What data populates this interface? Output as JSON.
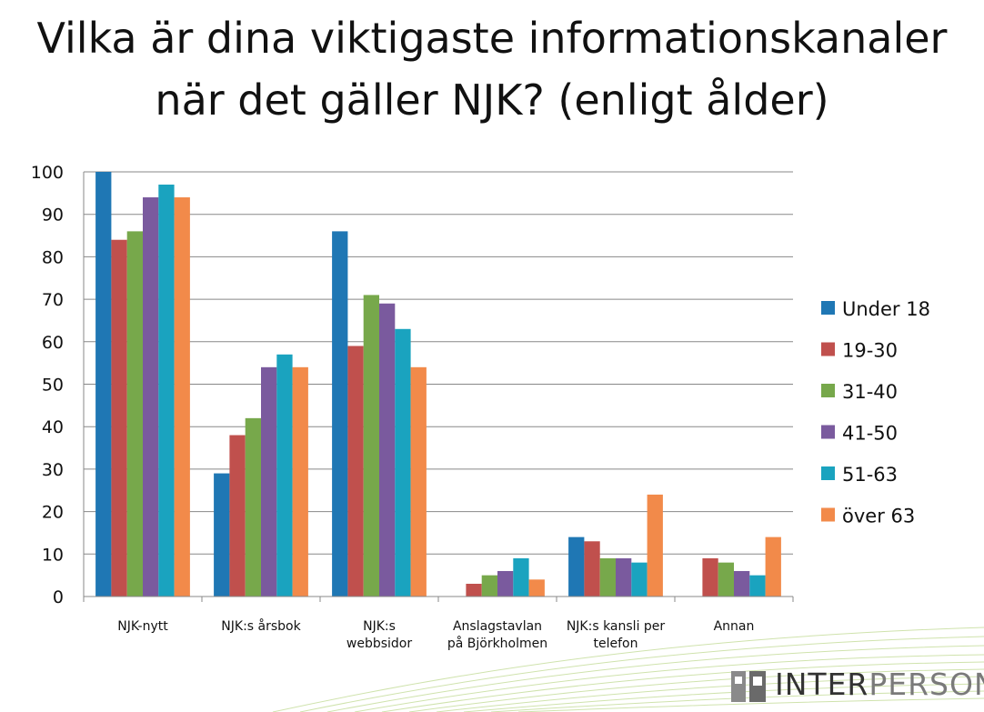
{
  "title_lines": [
    "Vilka är dina viktigaste informationskanaler",
    "när det gäller NJK? (enligt ålder)"
  ],
  "brand": {
    "part1": "INTER",
    "part2": "PERSONA"
  },
  "colors": {
    "Under 18": "#1f77b4",
    "19-30": "#c0504d",
    "31-40": "#77a84b",
    "41-50": "#7a5a9e",
    "51-63": "#1aa3bf",
    "över 63": "#f28a4a",
    "grid": "#888888"
  },
  "chart_data": {
    "type": "bar",
    "title": "Vilka är dina viktigaste informationskanaler när det gäller NJK? (enligt ålder)",
    "categories": [
      [
        "NJK-nytt"
      ],
      [
        "NJK:s årsbok"
      ],
      [
        "NJK:s",
        "webbsidor"
      ],
      [
        "Anslagstavlan",
        "på Björkholmen"
      ],
      [
        "NJK:s kansli per",
        "telefon"
      ],
      [
        "Annan"
      ]
    ],
    "series": [
      {
        "name": "Under 18",
        "values": [
          100,
          29,
          86,
          0,
          14,
          0
        ]
      },
      {
        "name": "19-30",
        "values": [
          84,
          38,
          59,
          3,
          13,
          9
        ]
      },
      {
        "name": "31-40",
        "values": [
          86,
          42,
          71,
          5,
          9,
          8
        ]
      },
      {
        "name": "41-50",
        "values": [
          94,
          54,
          69,
          6,
          9,
          6
        ]
      },
      {
        "name": "51-63",
        "values": [
          97,
          57,
          63,
          9,
          8,
          5
        ]
      },
      {
        "name": "över 63",
        "values": [
          94,
          54,
          54,
          4,
          24,
          14
        ]
      }
    ],
    "ylim": [
      0,
      100
    ],
    "yticks": [
      0,
      10,
      20,
      30,
      40,
      50,
      60,
      70,
      80,
      90,
      100
    ],
    "grid": true,
    "legend_position": "right"
  }
}
